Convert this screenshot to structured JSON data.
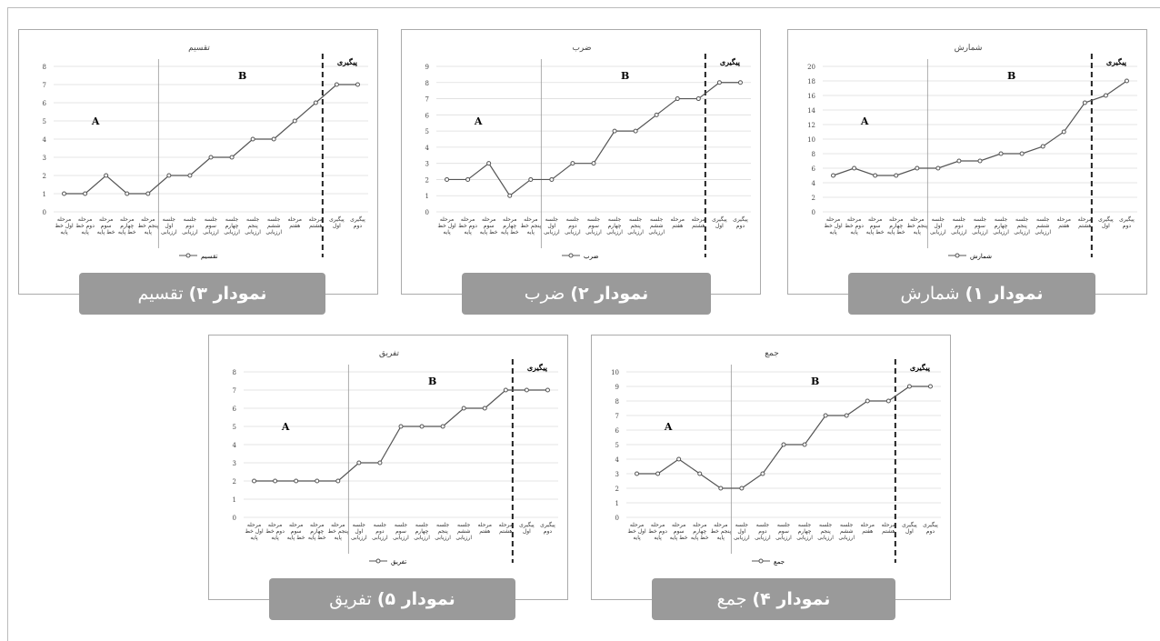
{
  "chart_data": [
    {
      "type": "line",
      "title": "شمارش",
      "categories": [
        "مرحله اول خط پایه",
        "مرحله دوم خط پایه",
        "مرحله سوم خط پایه",
        "مرحله چهارم خط پایه",
        "مرحله پنجم خط پایه",
        "جلسه اول ارزیابی",
        "جلسه دوم ارزیابی",
        "جلسه سوم ارزیابی",
        "جلسه چهارم ارزیابی",
        "جلسه پنجم ارزیابی",
        "جلسه ششم ارزیابی",
        "مرحله هفتم",
        "مرحله هشتم",
        "پیگیری اول",
        "پیگیری دوم"
      ],
      "series": [
        {
          "name": "شمارش",
          "color": "#555555",
          "values": [
            5,
            6,
            5,
            5,
            6,
            6,
            7,
            7,
            8,
            8,
            9,
            11,
            15,
            16,
            18
          ]
        }
      ],
      "ylim": [
        0,
        20
      ],
      "yticks": [
        0,
        2,
        4,
        6,
        8,
        10,
        12,
        14,
        16,
        18,
        20
      ],
      "grid": true,
      "annotations": [
        "A",
        "B",
        "پیگیری"
      ],
      "caption": {
        "label": "نمودار ۱)",
        "text": "شمارش"
      }
    },
    {
      "type": "line",
      "title": "ضرب",
      "categories": [
        "مرحله اول خط پایه",
        "مرحله دوم خط پایه",
        "مرحله سوم خط پایه",
        "مرحله چهارم خط پایه",
        "مرحله پنجم خط پایه",
        "جلسه اول ارزیابی",
        "جلسه دوم ارزیابی",
        "جلسه سوم ارزیابی",
        "جلسه چهارم ارزیابی",
        "جلسه پنجم ارزیابی",
        "جلسه ششم ارزیابی",
        "مرحله هفتم",
        "مرحله هشتم",
        "پیگیری اول",
        "پیگیری دوم"
      ],
      "series": [
        {
          "name": "ضرب",
          "color": "#555555",
          "values": [
            2,
            2,
            3,
            1,
            2,
            2,
            3,
            3,
            5,
            5,
            6,
            7,
            7,
            8,
            8
          ]
        }
      ],
      "ylim": [
        0,
        9
      ],
      "yticks": [
        0,
        1,
        2,
        3,
        4,
        5,
        6,
        7,
        8,
        9
      ],
      "grid": true,
      "annotations": [
        "A",
        "B",
        "پیگیری"
      ],
      "caption": {
        "label": "نمودار ۲)",
        "text": "ضرب"
      }
    },
    {
      "type": "line",
      "title": "تقسیم",
      "categories": [
        "مرحله اول خط پایه",
        "مرحله دوم خط پایه",
        "مرحله سوم خط پایه",
        "مرحله چهارم خط پایه",
        "مرحله پنجم خط پایه",
        "جلسه اول ارزیابی",
        "جلسه دوم ارزیابی",
        "جلسه سوم ارزیابی",
        "جلسه چهارم ارزیابی",
        "جلسه پنجم ارزیابی",
        "جلسه ششم ارزیابی",
        "مرحله هفتم",
        "مرحله هشتم",
        "پیگیری اول",
        "پیگیری دوم"
      ],
      "series": [
        {
          "name": "تقسیم",
          "color": "#555555",
          "values": [
            1,
            1,
            2,
            1,
            1,
            2,
            2,
            3,
            3,
            4,
            4,
            5,
            6,
            7,
            7
          ]
        }
      ],
      "ylim": [
        0,
        8
      ],
      "yticks": [
        0,
        1,
        2,
        3,
        4,
        5,
        6,
        7,
        8
      ],
      "grid": true,
      "annotations": [
        "A",
        "B",
        "پیگیری"
      ],
      "caption": {
        "label": "نمودار ۳)",
        "text": "تقسیم"
      }
    },
    {
      "type": "line",
      "title": "جمع",
      "categories": [
        "مرحله اول خط پایه",
        "مرحله دوم خط پایه",
        "مرحله سوم خط پایه",
        "مرحله چهارم خط پایه",
        "مرحله پنجم خط پایه",
        "جلسه اول ارزیابی",
        "جلسه دوم ارزیابی",
        "جلسه سوم ارزیابی",
        "جلسه چهارم ارزیابی",
        "جلسه پنجم ارزیابی",
        "جلسه ششم ارزیابی",
        "مرحله هفتم",
        "مرحله هشتم",
        "پیگیری اول",
        "پیگیری دوم"
      ],
      "series": [
        {
          "name": "جمع",
          "color": "#555555",
          "values": [
            3,
            3,
            4,
            3,
            2,
            2,
            3,
            5,
            5,
            7,
            7,
            8,
            8,
            9,
            9
          ]
        }
      ],
      "ylim": [
        0,
        10
      ],
      "yticks": [
        0,
        1,
        2,
        3,
        4,
        5,
        6,
        7,
        8,
        9,
        10
      ],
      "grid": true,
      "annotations": [
        "A",
        "B",
        "پیگیری"
      ],
      "caption": {
        "label": "نمودار ۴)",
        "text": "جمع"
      }
    },
    {
      "type": "line",
      "title": "تفریق",
      "categories": [
        "مرحله اول خط پایه",
        "مرحله دوم خط پایه",
        "مرحله سوم خط پایه",
        "مرحله چهارم خط پایه",
        "مرحله پنجم خط پایه",
        "جلسه اول ارزیابی",
        "جلسه دوم ارزیابی",
        "جلسه سوم ارزیابی",
        "جلسه چهارم ارزیابی",
        "جلسه پنجم ارزیابی",
        "جلسه ششم ارزیابی",
        "مرحله هفتم",
        "مرحله هشتم",
        "پیگیری اول",
        "پیگیری دوم"
      ],
      "series": [
        {
          "name": "تفریق",
          "color": "#555555",
          "values": [
            2,
            2,
            2,
            2,
            2,
            3,
            3,
            5,
            5,
            5,
            6,
            6,
            7,
            7,
            7
          ]
        }
      ],
      "ylim": [
        0,
        8
      ],
      "yticks": [
        0,
        1,
        2,
        3,
        4,
        5,
        6,
        7,
        8
      ],
      "grid": true,
      "annotations": [
        "A",
        "B",
        "پیگیری"
      ],
      "caption": {
        "label": "نمودار ۵)",
        "text": "تفریق"
      }
    }
  ]
}
